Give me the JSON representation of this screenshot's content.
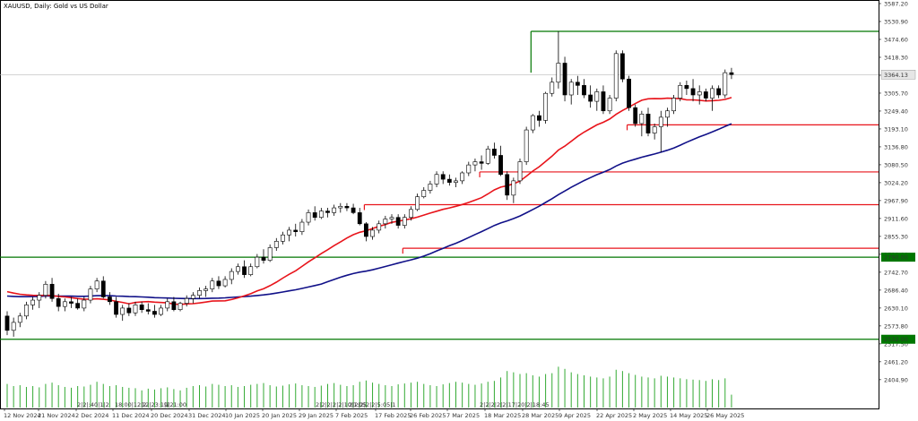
{
  "title": "XAUUSD, Daily:  Gold vs US Dollar",
  "colors": {
    "background": "#ffffff",
    "candle_outline": "#000000",
    "bull_fill": "#ffffff",
    "bear_fill": "#000000",
    "ma_fast": "#e8141b",
    "ma_slow": "#101088",
    "level_red": "#e8141b",
    "level_green": "#007700",
    "volume": "#33aa33",
    "price_line": "#bbbbbb"
  },
  "chart_data": {
    "type": "candlestick",
    "title": "XAUUSD, Daily:  Gold vs US Dollar",
    "ylim": [
      2348.2,
      3587.2
    ],
    "y_ticks": [
      "3587.20",
      "3530.90",
      "3474.60",
      "3418.30",
      "3362.00",
      "3305.70",
      "3249.40",
      "3193.10",
      "3136.80",
      "3080.50",
      "3024.20",
      "2967.90",
      "2911.60",
      "2855.30",
      "2799.00",
      "2742.70",
      "2686.40",
      "2630.10",
      "2573.80",
      "2517.50",
      "2461.20",
      "2404.90"
    ],
    "x_labels": [
      "12 Nov 2024",
      "21 Nov 2024",
      "2 Dec 2024",
      "11 Dec 2024",
      "20 Dec 2024",
      "31 Dec 2024",
      "10 Jan 2025",
      "20 Jan 2025",
      "29 Jan 2025",
      "7 Feb 2025",
      "17 Feb 2025",
      "26 Feb 2025",
      "7 Mar 2025",
      "18 Mar 2025",
      "28 Mar 2025",
      "9 Apr 2025",
      "22 Apr 2025",
      "2 May 2025",
      "14 May 2025",
      "26 May 2025"
    ],
    "current_price_label": "3364.13",
    "level_labels": [
      "2790.00",
      "2532.00"
    ],
    "ohlc": [
      [
        2605,
        2620,
        2545,
        2560
      ],
      [
        2560,
        2600,
        2540,
        2585
      ],
      [
        2585,
        2615,
        2570,
        2605
      ],
      [
        2605,
        2650,
        2595,
        2640
      ],
      [
        2640,
        2665,
        2625,
        2655
      ],
      [
        2655,
        2680,
        2630,
        2670
      ],
      [
        2670,
        2715,
        2660,
        2705
      ],
      [
        2705,
        2725,
        2650,
        2660
      ],
      [
        2660,
        2675,
        2620,
        2635
      ],
      [
        2635,
        2660,
        2620,
        2650
      ],
      [
        2650,
        2665,
        2630,
        2645
      ],
      [
        2645,
        2660,
        2625,
        2630
      ],
      [
        2630,
        2665,
        2620,
        2655
      ],
      [
        2655,
        2700,
        2645,
        2690
      ],
      [
        2690,
        2725,
        2680,
        2715
      ],
      [
        2715,
        2730,
        2660,
        2665
      ],
      [
        2665,
        2680,
        2640,
        2650
      ],
      [
        2650,
        2665,
        2600,
        2610
      ],
      [
        2610,
        2640,
        2590,
        2630
      ],
      [
        2630,
        2645,
        2605,
        2615
      ],
      [
        2615,
        2650,
        2605,
        2640
      ],
      [
        2640,
        2650,
        2615,
        2625
      ],
      [
        2625,
        2645,
        2610,
        2620
      ],
      [
        2620,
        2640,
        2600,
        2610
      ],
      [
        2610,
        2640,
        2605,
        2630
      ],
      [
        2630,
        2660,
        2620,
        2650
      ],
      [
        2650,
        2665,
        2620,
        2625
      ],
      [
        2625,
        2650,
        2620,
        2645
      ],
      [
        2645,
        2670,
        2635,
        2660
      ],
      [
        2660,
        2680,
        2645,
        2670
      ],
      [
        2670,
        2695,
        2660,
        2685
      ],
      [
        2685,
        2700,
        2665,
        2690
      ],
      [
        2690,
        2725,
        2680,
        2715
      ],
      [
        2715,
        2730,
        2690,
        2700
      ],
      [
        2700,
        2730,
        2695,
        2720
      ],
      [
        2720,
        2755,
        2705,
        2745
      ],
      [
        2745,
        2770,
        2735,
        2760
      ],
      [
        2760,
        2780,
        2725,
        2735
      ],
      [
        2735,
        2770,
        2730,
        2760
      ],
      [
        2760,
        2800,
        2755,
        2790
      ],
      [
        2790,
        2815,
        2770,
        2780
      ],
      [
        2780,
        2830,
        2775,
        2820
      ],
      [
        2820,
        2850,
        2810,
        2840
      ],
      [
        2840,
        2870,
        2830,
        2860
      ],
      [
        2860,
        2885,
        2840,
        2875
      ],
      [
        2875,
        2895,
        2855,
        2870
      ],
      [
        2870,
        2910,
        2860,
        2900
      ],
      [
        2900,
        2940,
        2890,
        2930
      ],
      [
        2930,
        2950,
        2905,
        2915
      ],
      [
        2915,
        2945,
        2910,
        2935
      ],
      [
        2935,
        2945,
        2915,
        2930
      ],
      [
        2930,
        2955,
        2920,
        2945
      ],
      [
        2945,
        2960,
        2930,
        2950
      ],
      [
        2950,
        2960,
        2935,
        2945
      ],
      [
        2945,
        2958,
        2925,
        2930
      ],
      [
        2930,
        2945,
        2890,
        2895
      ],
      [
        2895,
        2900,
        2840,
        2855
      ],
      [
        2855,
        2885,
        2845,
        2875
      ],
      [
        2875,
        2905,
        2865,
        2895
      ],
      [
        2895,
        2920,
        2880,
        2910
      ],
      [
        2910,
        2925,
        2895,
        2915
      ],
      [
        2915,
        2925,
        2880,
        2890
      ],
      [
        2890,
        2925,
        2880,
        2915
      ],
      [
        2915,
        2950,
        2905,
        2940
      ],
      [
        2940,
        2990,
        2935,
        2980
      ],
      [
        2980,
        3010,
        2975,
        3000
      ],
      [
        3000,
        3030,
        2990,
        3020
      ],
      [
        3020,
        3060,
        3010,
        3050
      ],
      [
        3050,
        3060,
        3020,
        3035
      ],
      [
        3035,
        3050,
        3015,
        3025
      ],
      [
        3025,
        3040,
        3010,
        3030
      ],
      [
        3030,
        3060,
        3020,
        3055
      ],
      [
        3055,
        3090,
        3045,
        3080
      ],
      [
        3080,
        3100,
        3060,
        3090
      ],
      [
        3090,
        3110,
        3065,
        3085
      ],
      [
        3085,
        3140,
        3080,
        3130
      ],
      [
        3130,
        3150,
        3100,
        3110
      ],
      [
        3110,
        3140,
        3045,
        3050
      ],
      [
        3050,
        3060,
        2970,
        2985
      ],
      [
        2985,
        3040,
        2960,
        3030
      ],
      [
        3030,
        3100,
        3020,
        3090
      ],
      [
        3090,
        3200,
        3080,
        3190
      ],
      [
        3190,
        3240,
        3180,
        3235
      ],
      [
        3235,
        3250,
        3200,
        3220
      ],
      [
        3220,
        3310,
        3210,
        3305
      ],
      [
        3305,
        3355,
        3295,
        3340
      ],
      [
        3340,
        3500,
        3320,
        3400
      ],
      [
        3400,
        3420,
        3280,
        3300
      ],
      [
        3300,
        3350,
        3270,
        3340
      ],
      [
        3340,
        3360,
        3300,
        3330
      ],
      [
        3330,
        3350,
        3290,
        3300
      ],
      [
        3300,
        3330,
        3260,
        3280
      ],
      [
        3280,
        3320,
        3250,
        3310
      ],
      [
        3310,
        3330,
        3240,
        3250
      ],
      [
        3250,
        3300,
        3240,
        3290
      ],
      [
        3290,
        3440,
        3280,
        3430
      ],
      [
        3430,
        3440,
        3340,
        3350
      ],
      [
        3350,
        3360,
        3250,
        3260
      ],
      [
        3260,
        3270,
        3200,
        3210
      ],
      [
        3210,
        3250,
        3170,
        3240
      ],
      [
        3240,
        3260,
        3170,
        3180
      ],
      [
        3180,
        3210,
        3160,
        3200
      ],
      [
        3200,
        3250,
        3120,
        3230
      ],
      [
        3230,
        3260,
        3200,
        3250
      ],
      [
        3250,
        3300,
        3240,
        3290
      ],
      [
        3290,
        3340,
        3280,
        3330
      ],
      [
        3330,
        3345,
        3300,
        3320
      ],
      [
        3320,
        3350,
        3280,
        3300
      ],
      [
        3300,
        3330,
        3270,
        3310
      ],
      [
        3310,
        3320,
        3280,
        3290
      ],
      [
        3290,
        3330,
        3250,
        3320
      ],
      [
        3320,
        3330,
        3290,
        3300
      ],
      [
        3300,
        3380,
        3290,
        3370
      ],
      [
        3370,
        3385,
        3350,
        3364
      ]
    ],
    "volume_rel": [
      0.55,
      0.5,
      0.52,
      0.48,
      0.5,
      0.47,
      0.55,
      0.58,
      0.52,
      0.48,
      0.46,
      0.5,
      0.49,
      0.53,
      0.6,
      0.55,
      0.5,
      0.52,
      0.48,
      0.46,
      0.45,
      0.4,
      0.44,
      0.42,
      0.45,
      0.47,
      0.43,
      0.4,
      0.46,
      0.5,
      0.52,
      0.49,
      0.55,
      0.53,
      0.5,
      0.52,
      0.48,
      0.5,
      0.53,
      0.55,
      0.57,
      0.52,
      0.49,
      0.51,
      0.54,
      0.56,
      0.52,
      0.5,
      0.48,
      0.51,
      0.55,
      0.57,
      0.53,
      0.5,
      0.52,
      0.6,
      0.63,
      0.58,
      0.55,
      0.52,
      0.5,
      0.54,
      0.56,
      0.58,
      0.6,
      0.55,
      0.52,
      0.5,
      0.54,
      0.57,
      0.6,
      0.58,
      0.55,
      0.53,
      0.56,
      0.6,
      0.62,
      0.7,
      0.85,
      0.82,
      0.78,
      0.8,
      0.75,
      0.72,
      0.78,
      0.8,
      0.95,
      0.9,
      0.82,
      0.78,
      0.75,
      0.72,
      0.7,
      0.68,
      0.72,
      0.88,
      0.85,
      0.8,
      0.76,
      0.72,
      0.7,
      0.68,
      0.74,
      0.72,
      0.7,
      0.68,
      0.66,
      0.65,
      0.64,
      0.62,
      0.66,
      0.64,
      0.68,
      0.3
    ],
    "ma_fast_period": 20,
    "ma_slow_period": 50,
    "levels": [
      {
        "price": 3500,
        "start": 82,
        "color": "green"
      },
      {
        "price": 3206,
        "start": 97,
        "color": "red"
      },
      {
        "price": 3058,
        "start": 74,
        "color": "red"
      },
      {
        "price": 2955,
        "start": 56,
        "color": "red"
      },
      {
        "price": 2818,
        "start": 62,
        "color": "red"
      },
      {
        "price": 2790,
        "start": 0,
        "color": "green",
        "labeled": true
      },
      {
        "price": 2532,
        "start": 0,
        "color": "green",
        "labeled": true
      }
    ],
    "bottom_annotations": [
      "2|2|:40|1|2",
      "18:00|12|2",
      "12|23:1|2",
      "9|21:00",
      "2|2|2|2|2|10|1:05",
      "2|2|2|2|2|5:05|1",
      "2|2|2|2|2|17|20|2|18:45"
    ]
  }
}
